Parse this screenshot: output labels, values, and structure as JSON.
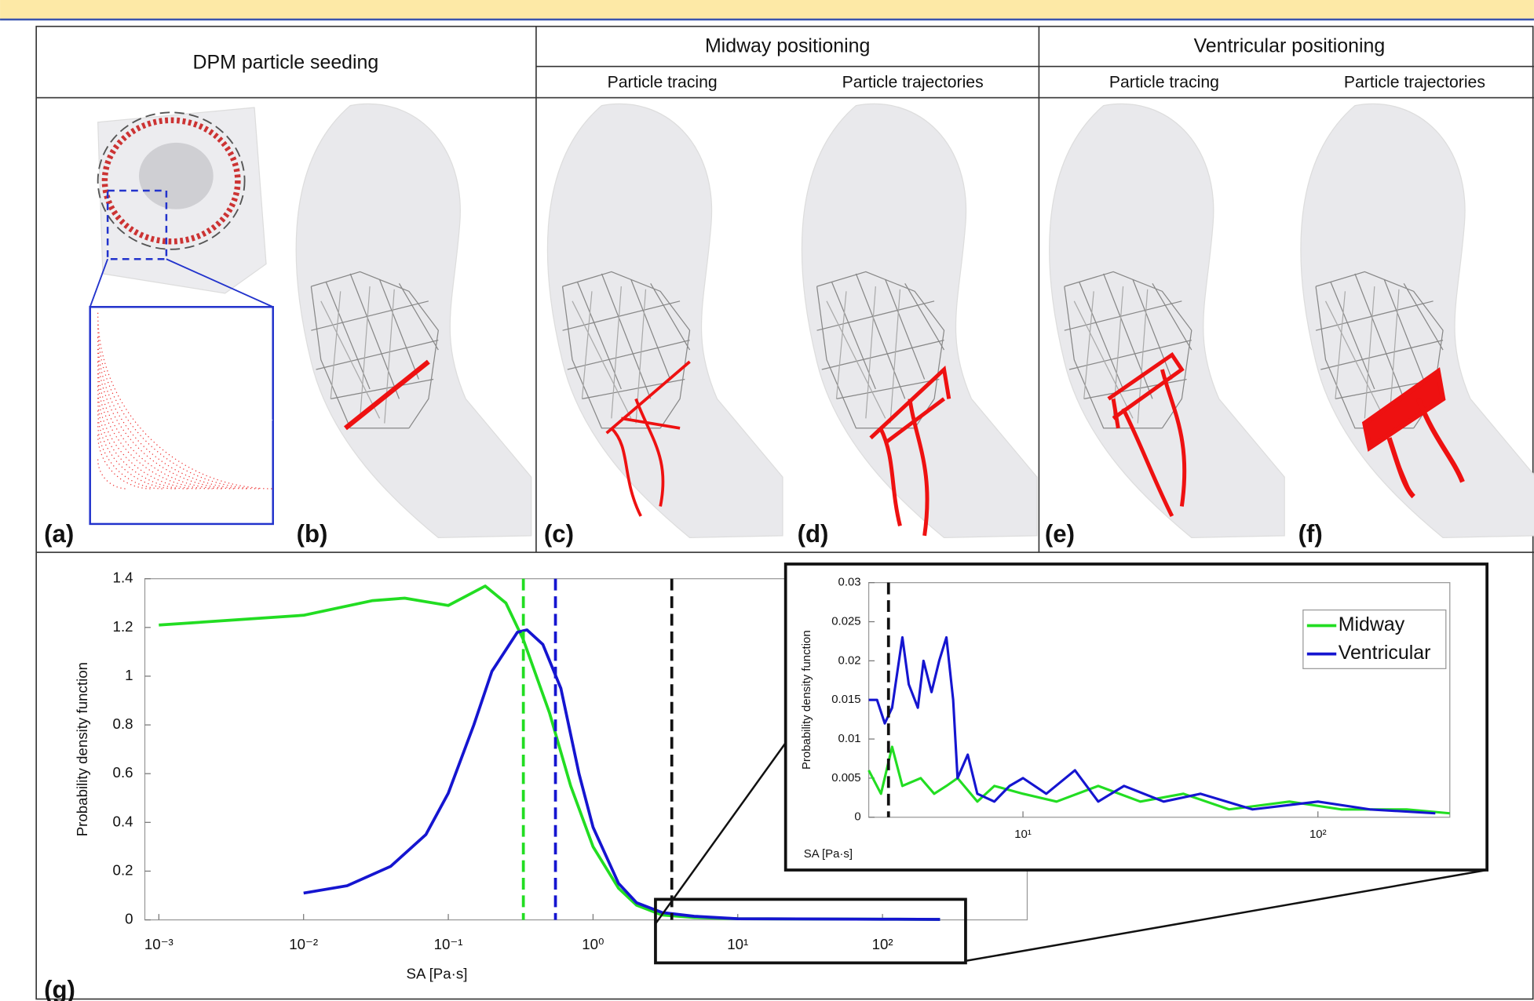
{
  "header": {
    "seeding": "DPM particle seeding",
    "midway": "Midway positioning",
    "ventricular": "Ventricular positioning",
    "subheaders": [
      "Particle tracing",
      "Particle trajectories",
      "Particle tracing",
      "Particle trajectories"
    ]
  },
  "panel_labels": [
    "(a)",
    "(b)",
    "(c)",
    "(d)",
    "(e)",
    "(f)",
    "(g)"
  ],
  "chart_data": [
    {
      "type": "line",
      "xlabel": "SA [Pa·s]",
      "ylabel": "Probability density function",
      "xscale": "log",
      "xlim": [
        0.0008,
        1000
      ],
      "ylim": [
        0,
        1.4
      ],
      "xticks": [
        {
          "value": 0.001,
          "label": "10⁻³"
        },
        {
          "value": 0.01,
          "label": "10⁻²"
        },
        {
          "value": 0.1,
          "label": "10⁻¹"
        },
        {
          "value": 1,
          "label": "10⁰"
        },
        {
          "value": 10,
          "label": "10¹"
        },
        {
          "value": 100,
          "label": "10²"
        }
      ],
      "yticks": [
        0,
        0.2,
        0.4,
        0.6,
        0.8,
        1,
        1.2,
        1.4
      ],
      "series": [
        {
          "name": "Midway",
          "color": "#22dd22",
          "x": [
            0.001,
            0.01,
            0.03,
            0.05,
            0.1,
            0.18,
            0.25,
            0.33,
            0.5,
            0.7,
            1,
            1.5,
            2,
            3,
            5,
            10,
            100,
            250
          ],
          "values": [
            1.21,
            1.25,
            1.31,
            1.32,
            1.29,
            1.37,
            1.3,
            1.15,
            0.85,
            0.55,
            0.3,
            0.13,
            0.06,
            0.02,
            0.01,
            0.005,
            0.003,
            0.002
          ]
        },
        {
          "name": "Ventricular",
          "color": "#1515d0",
          "x": [
            0.01,
            0.02,
            0.04,
            0.07,
            0.1,
            0.15,
            0.2,
            0.3,
            0.35,
            0.45,
            0.6,
            0.8,
            1,
            1.5,
            2,
            3,
            5,
            10,
            100,
            250
          ],
          "values": [
            0.11,
            0.14,
            0.22,
            0.35,
            0.52,
            0.8,
            1.02,
            1.18,
            1.19,
            1.13,
            0.95,
            0.6,
            0.38,
            0.15,
            0.07,
            0.03,
            0.015,
            0.005,
            0.003,
            0.002
          ]
        }
      ],
      "vlines": [
        {
          "x": 0.33,
          "color": "#22dd22"
        },
        {
          "x": 0.55,
          "color": "#1515d0"
        },
        {
          "x": 3.5,
          "color": "#111111"
        }
      ]
    },
    {
      "type": "line",
      "xlabel": "SA [Pa·s]",
      "ylabel": "Probability density function",
      "xscale": "log",
      "xlim": [
        3,
        280
      ],
      "ylim": [
        0,
        0.03
      ],
      "xticks": [
        {
          "value": 10,
          "label": "10¹"
        },
        {
          "value": 100,
          "label": "10²"
        }
      ],
      "yticks": [
        0,
        0.005,
        0.01,
        0.015,
        0.02,
        0.025,
        0.03
      ],
      "legend": "upper right",
      "series": [
        {
          "name": "Midway",
          "color": "#22dd22",
          "x": [
            3,
            3.3,
            3.6,
            3.9,
            4.5,
            5,
            5.5,
            6,
            7,
            8,
            10,
            13,
            18,
            25,
            35,
            50,
            80,
            120,
            200,
            280
          ],
          "values": [
            0.006,
            0.003,
            0.009,
            0.004,
            0.005,
            0.003,
            0.004,
            0.005,
            0.002,
            0.004,
            0.003,
            0.002,
            0.004,
            0.002,
            0.003,
            0.001,
            0.002,
            0.001,
            0.001,
            0.0005
          ]
        },
        {
          "name": "Ventricular",
          "color": "#1515d0",
          "x": [
            3,
            3.2,
            3.4,
            3.6,
            3.9,
            4.1,
            4.4,
            4.6,
            4.9,
            5.2,
            5.5,
            5.8,
            6,
            6.5,
            7,
            8,
            9,
            10,
            12,
            15,
            18,
            22,
            30,
            40,
            60,
            100,
            150,
            250
          ],
          "values": [
            0.015,
            0.015,
            0.012,
            0.014,
            0.023,
            0.017,
            0.014,
            0.02,
            0.016,
            0.02,
            0.023,
            0.015,
            0.005,
            0.008,
            0.003,
            0.002,
            0.004,
            0.005,
            0.003,
            0.006,
            0.002,
            0.004,
            0.002,
            0.003,
            0.001,
            0.002,
            0.001,
            0.0005
          ]
        }
      ],
      "vlines": [
        {
          "x": 3.5,
          "color": "#111111"
        }
      ]
    }
  ]
}
